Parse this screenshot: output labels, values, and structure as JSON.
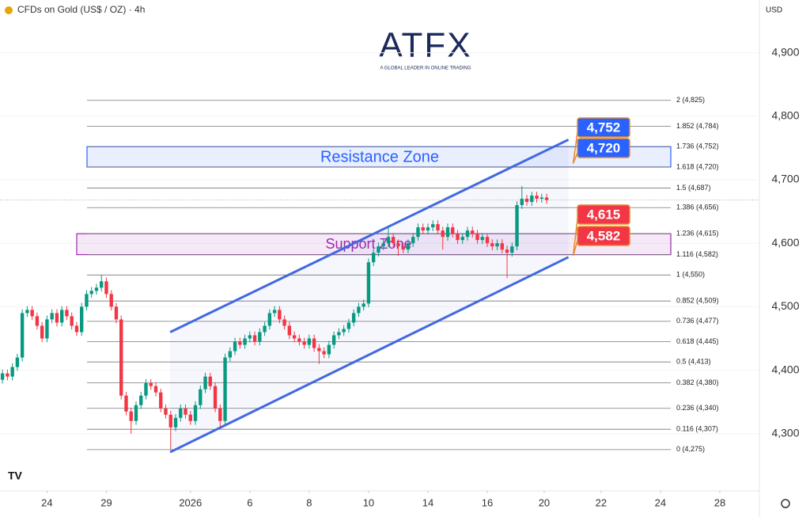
{
  "chart_data": {
    "type": "candlestick",
    "title": "CFDs on Gold (US$ / OZ) · 4h",
    "currency": "USD",
    "logo": "ATFX",
    "tagline": "A GLOBAL LEADER IN ONLINE TRADING",
    "up_color": "#089981",
    "down_color": "#f23645",
    "xlim": [
      -0.5,
      153
    ],
    "ylim": [
      4210,
      4983
    ],
    "yticks": [
      {
        "value": 4300,
        "label": "4,300"
      },
      {
        "value": 4400,
        "label": "4,400"
      },
      {
        "value": 4500,
        "label": "4,500"
      },
      {
        "value": 4600,
        "label": "4,600"
      },
      {
        "value": 4700,
        "label": "4,700"
      },
      {
        "value": 4800,
        "label": "4,800"
      },
      {
        "value": 4900,
        "label": "4,900"
      }
    ],
    "xticks": [
      {
        "value": 9,
        "label": "24"
      },
      {
        "value": 21,
        "label": "29"
      },
      {
        "value": 38,
        "label": "2026"
      },
      {
        "value": 50,
        "label": "6"
      },
      {
        "value": 62,
        "label": "8"
      },
      {
        "value": 74,
        "label": "10"
      },
      {
        "value": 86,
        "label": "14"
      },
      {
        "value": 98,
        "label": "16"
      },
      {
        "value": 109.5,
        "label": "20"
      },
      {
        "value": 121,
        "label": "22"
      },
      {
        "value": 133,
        "label": "24"
      },
      {
        "value": 145,
        "label": "28"
      }
    ],
    "fib_levels": [
      {
        "value": 4825,
        "label": "2 (4,825)"
      },
      {
        "value": 4784,
        "label": "1.852 (4,784)"
      },
      {
        "value": 4752,
        "label": "1.736 (4,752)"
      },
      {
        "value": 4720,
        "label": "1.618 (4,720)"
      },
      {
        "value": 4687,
        "label": "1.5 (4,687)"
      },
      {
        "value": 4656,
        "label": "1.386 (4,656)"
      },
      {
        "value": 4615,
        "label": "1.236 (4,615)"
      },
      {
        "value": 4582,
        "label": "1.116 (4,582)"
      },
      {
        "value": 4550,
        "label": "1 (4,550)"
      },
      {
        "value": 4509,
        "label": "0.852 (4,509)"
      },
      {
        "value": 4477,
        "label": "0.736 (4,477)"
      },
      {
        "value": 4445,
        "label": "0.618 (4,445)"
      },
      {
        "value": 4413,
        "label": "0.5 (4,413)"
      },
      {
        "value": 4380,
        "label": "0.382 (4,380)"
      },
      {
        "value": 4340,
        "label": "0.236 (4,340)"
      },
      {
        "value": 4307,
        "label": "0.116 (4,307)"
      },
      {
        "value": 4275,
        "label": "0 (4,275)"
      }
    ],
    "zones": [
      {
        "name": "Resistance Zone",
        "low": 4720,
        "high": 4752,
        "color": "#2962ff"
      },
      {
        "name": "Support Zone",
        "low": 4582,
        "high": 4615,
        "color": "#9c27b0"
      }
    ],
    "price_tags": [
      {
        "value": 4752,
        "label": "4,752",
        "color": "#2962ff"
      },
      {
        "value": 4720,
        "label": "4,720",
        "color": "#2962ff"
      },
      {
        "value": 4615,
        "label": "4,615",
        "color": "#f23645"
      },
      {
        "value": 4582,
        "label": "4,582",
        "color": "#f23645"
      }
    ],
    "channel": {
      "upper": [
        [
          33.9,
          4460
        ],
        [
          114.4,
          4763
        ]
      ],
      "lower": [
        [
          33.9,
          4271
        ],
        [
          114.4,
          4578
        ]
      ],
      "color": "#4169e1"
    },
    "last_price": 4668,
    "ohlc": [
      [
        4385,
        4401,
        4379,
        4395
      ],
      [
        4395,
        4401,
        4384,
        4390
      ],
      [
        4390,
        4411,
        4384,
        4405
      ],
      [
        4405,
        4426,
        4399,
        4420
      ],
      [
        4420,
        4496,
        4414,
        4490
      ],
      [
        4490,
        4501,
        4484,
        4495
      ],
      [
        4495,
        4501,
        4479,
        4485
      ],
      [
        4485,
        4491,
        4464,
        4470
      ],
      [
        4470,
        4476,
        4444,
        4450
      ],
      [
        4450,
        4486,
        4444,
        4480
      ],
      [
        4480,
        4496,
        4474,
        4490
      ],
      [
        4490,
        4496,
        4469,
        4475
      ],
      [
        4475,
        4501,
        4469,
        4495
      ],
      [
        4495,
        4501,
        4479,
        4485
      ],
      [
        4485,
        4491,
        4464,
        4470
      ],
      [
        4470,
        4476,
        4454,
        4460
      ],
      [
        4460,
        4506,
        4454,
        4500
      ],
      [
        4500,
        4526,
        4494,
        4520
      ],
      [
        4520,
        4531,
        4514,
        4525
      ],
      [
        4525,
        4536,
        4519,
        4530
      ],
      [
        4530,
        4550,
        4524,
        4540
      ],
      [
        4540,
        4546,
        4514,
        4520
      ],
      [
        4520,
        4526,
        4494,
        4500
      ],
      [
        4500,
        4506,
        4474,
        4480
      ],
      [
        4480,
        4486,
        4354,
        4360
      ],
      [
        4360,
        4366,
        4329,
        4335
      ],
      [
        4335,
        4341,
        4300,
        4320
      ],
      [
        4320,
        4351,
        4314,
        4345
      ],
      [
        4345,
        4366,
        4339,
        4360
      ],
      [
        4360,
        4386,
        4354,
        4380
      ],
      [
        4380,
        4386,
        4369,
        4375
      ],
      [
        4375,
        4381,
        4359,
        4365
      ],
      [
        4365,
        4371,
        4334,
        4340
      ],
      [
        4340,
        4346,
        4324,
        4330
      ],
      [
        4330,
        4336,
        4275,
        4310
      ],
      [
        4310,
        4331,
        4304,
        4325
      ],
      [
        4325,
        4346,
        4319,
        4340
      ],
      [
        4340,
        4346,
        4324,
        4330
      ],
      [
        4330,
        4336,
        4314,
        4320
      ],
      [
        4320,
        4351,
        4314,
        4345
      ],
      [
        4345,
        4376,
        4339,
        4370
      ],
      [
        4370,
        4396,
        4364,
        4390
      ],
      [
        4390,
        4396,
        4369,
        4375
      ],
      [
        4375,
        4381,
        4334,
        4340
      ],
      [
        4340,
        4346,
        4310,
        4320
      ],
      [
        4320,
        4426,
        4314,
        4420
      ],
      [
        4420,
        4436,
        4414,
        4430
      ],
      [
        4430,
        4451,
        4424,
        4445
      ],
      [
        4445,
        4451,
        4434,
        4440
      ],
      [
        4440,
        4456,
        4434,
        4450
      ],
      [
        4450,
        4461,
        4444,
        4455
      ],
      [
        4455,
        4461,
        4439,
        4445
      ],
      [
        4445,
        4466,
        4439,
        4460
      ],
      [
        4460,
        4476,
        4454,
        4470
      ],
      [
        4470,
        4496,
        4464,
        4490
      ],
      [
        4490,
        4501,
        4484,
        4495
      ],
      [
        4495,
        4501,
        4474,
        4480
      ],
      [
        4480,
        4486,
        4464,
        4470
      ],
      [
        4470,
        4476,
        4449,
        4455
      ],
      [
        4455,
        4461,
        4444,
        4450
      ],
      [
        4450,
        4456,
        4439,
        4445
      ],
      [
        4445,
        4451,
        4434,
        4440
      ],
      [
        4440,
        4456,
        4434,
        4450
      ],
      [
        4450,
        4456,
        4429,
        4435
      ],
      [
        4435,
        4441,
        4410,
        4430
      ],
      [
        4430,
        4436,
        4419,
        4425
      ],
      [
        4425,
        4446,
        4419,
        4440
      ],
      [
        4440,
        4461,
        4434,
        4455
      ],
      [
        4455,
        4466,
        4449,
        4460
      ],
      [
        4460,
        4471,
        4454,
        4465
      ],
      [
        4465,
        4481,
        4459,
        4475
      ],
      [
        4475,
        4496,
        4469,
        4490
      ],
      [
        4490,
        4506,
        4484,
        4500
      ],
      [
        4500,
        4511,
        4494,
        4505
      ],
      [
        4505,
        4576,
        4499,
        4570
      ],
      [
        4570,
        4591,
        4564,
        4585
      ],
      [
        4585,
        4601,
        4579,
        4595
      ],
      [
        4595,
        4606,
        4589,
        4600
      ],
      [
        4600,
        4625,
        4594,
        4610
      ],
      [
        4610,
        4616,
        4594,
        4600
      ],
      [
        4600,
        4606,
        4580,
        4595
      ],
      [
        4595,
        4601,
        4584,
        4590
      ],
      [
        4590,
        4606,
        4584,
        4600
      ],
      [
        4600,
        4616,
        4594,
        4610
      ],
      [
        4610,
        4631,
        4604,
        4625
      ],
      [
        4625,
        4631,
        4614,
        4620
      ],
      [
        4620,
        4631,
        4614,
        4625
      ],
      [
        4625,
        4636,
        4619,
        4630
      ],
      [
        4630,
        4636,
        4614,
        4620
      ],
      [
        4620,
        4626,
        4590,
        4610
      ],
      [
        4610,
        4631,
        4604,
        4625
      ],
      [
        4625,
        4631,
        4609,
        4615
      ],
      [
        4615,
        4621,
        4599,
        4605
      ],
      [
        4605,
        4616,
        4599,
        4610
      ],
      [
        4610,
        4626,
        4604,
        4620
      ],
      [
        4620,
        4626,
        4609,
        4615
      ],
      [
        4615,
        4621,
        4599,
        4605
      ],
      [
        4605,
        4616,
        4599,
        4610
      ],
      [
        4610,
        4616,
        4594,
        4600
      ],
      [
        4600,
        4606,
        4589,
        4595
      ],
      [
        4595,
        4606,
        4589,
        4600
      ],
      [
        4600,
        4606,
        4584,
        4590
      ],
      [
        4590,
        4596,
        4545,
        4585
      ],
      [
        4585,
        4601,
        4579,
        4595
      ],
      [
        4595,
        4666,
        4589,
        4660
      ],
      [
        4660,
        4690,
        4654,
        4670
      ],
      [
        4670,
        4676,
        4659,
        4665
      ],
      [
        4665,
        4681,
        4659,
        4675
      ],
      [
        4675,
        4681,
        4664,
        4670
      ],
      [
        4670,
        4678,
        4664,
        4672
      ],
      [
        4672,
        4678,
        4662,
        4668
      ]
    ]
  }
}
